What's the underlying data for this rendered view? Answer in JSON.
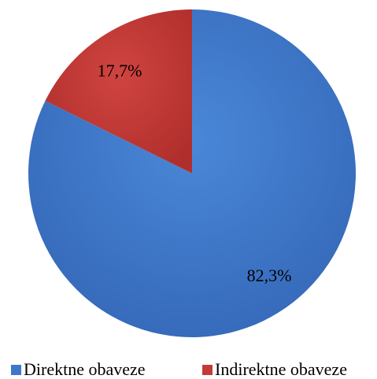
{
  "chart_data": {
    "type": "pie",
    "slices": [
      {
        "name": "Direktne obaveze",
        "value": 82.3,
        "label": "82,3%",
        "color": "#3f78c9"
      },
      {
        "name": "Indirektne obaveze",
        "value": 17.7,
        "label": "17,7%",
        "color": "#c43a36"
      }
    ],
    "legend": {
      "position": "bottom",
      "entries": [
        "Direktne obaveze",
        "Indirektne obaveze"
      ]
    }
  }
}
